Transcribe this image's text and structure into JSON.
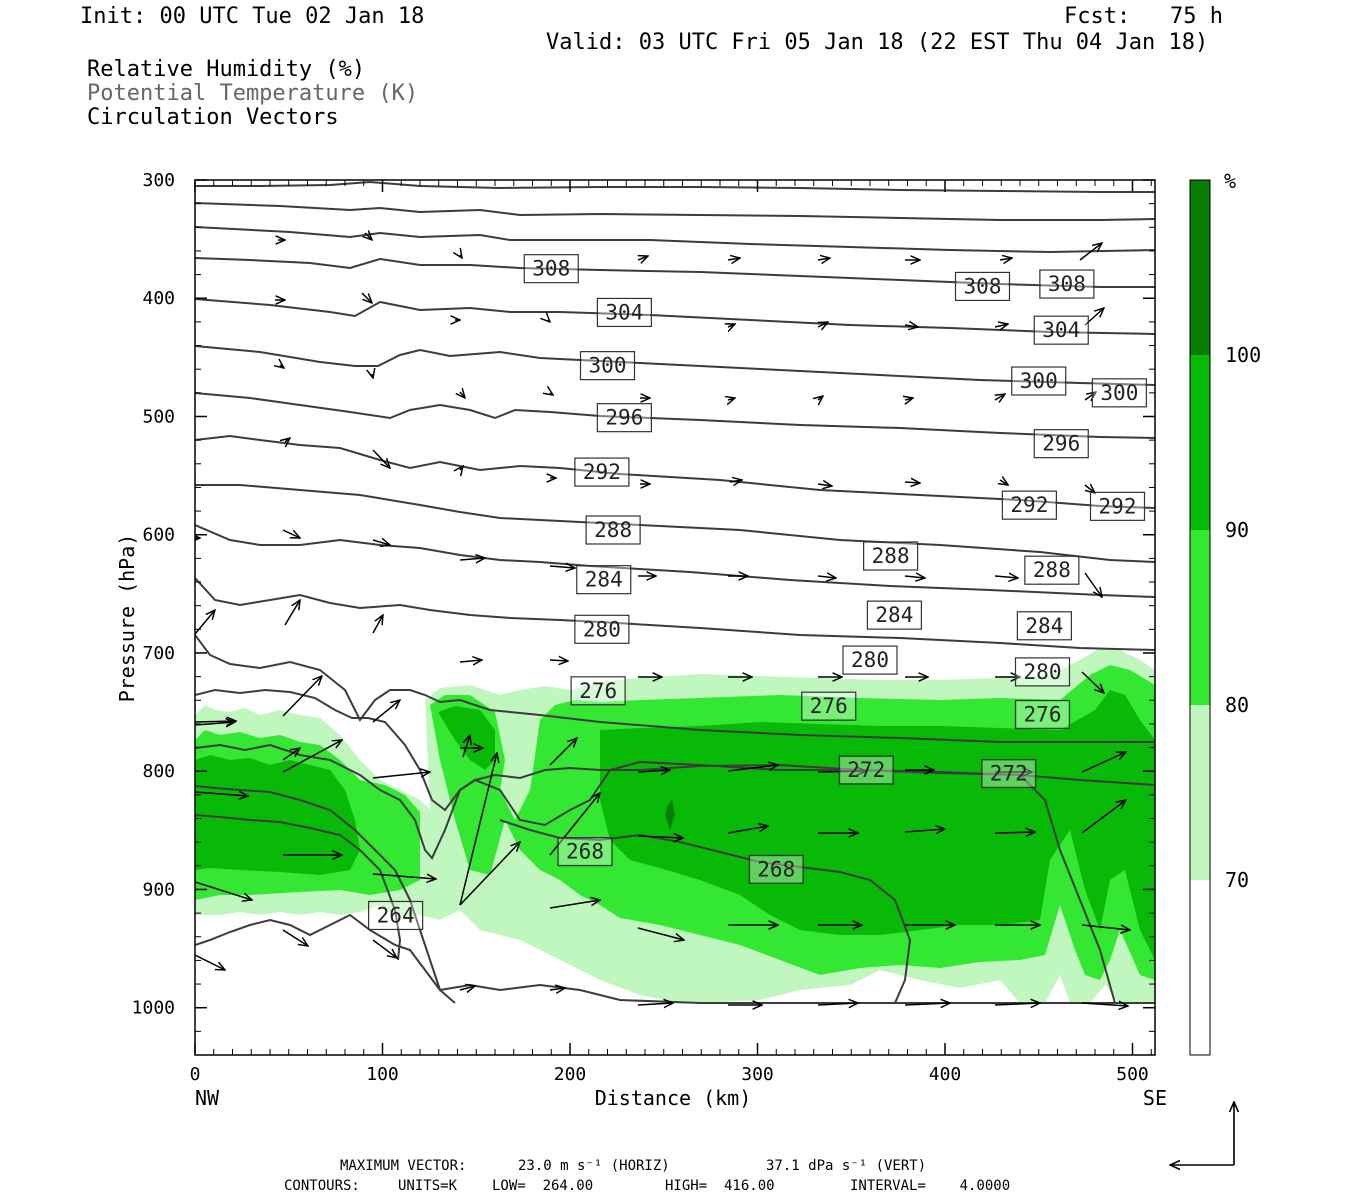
{
  "header": {
    "init": "Init: 00 UTC Tue 02 Jan 18",
    "fcst": "Fcst:   75 h",
    "valid": "Valid: 03 UTC Fri 05 Jan 18 (22 EST Thu 04 Jan 18)"
  },
  "fields": {
    "rh": "Relative Humidity (%)",
    "theta": "Potential Temperature (K)",
    "vectors": "Circulation Vectors"
  },
  "colors": {
    "rh70": "#c0f7bf",
    "rh80": "#33e733",
    "rh90": "#08b908",
    "rh100": "#067e06",
    "contour": "#3c3c3c",
    "vector": "#000000"
  },
  "chart_data": {
    "type": "contour-cross-section",
    "xlabel": "Distance (km)",
    "ylabel": "Pressure (hPa)",
    "xlim": [
      0,
      512
    ],
    "ylim": [
      1040,
      300
    ],
    "x_ticks": [
      "0",
      "100",
      "200",
      "300",
      "400",
      "500"
    ],
    "x_tick_values": [
      0,
      100,
      200,
      300,
      400,
      500
    ],
    "y_ticks": [
      "300",
      "400",
      "500",
      "600",
      "700",
      "800",
      "900",
      "1000"
    ],
    "y_tick_values": [
      300,
      400,
      500,
      600,
      700,
      800,
      900,
      1000
    ],
    "left_end_label": "NW",
    "right_end_label": "SE",
    "colorbar": {
      "unit": "%",
      "labels": [
        "70",
        "80",
        "90",
        "100"
      ],
      "levels": [
        70,
        80,
        90,
        100
      ]
    },
    "theta_contour_labels": [
      {
        "text": "308",
        "x": 190,
        "p": 375
      },
      {
        "text": "308",
        "x": 420,
        "p": 390
      },
      {
        "text": "308",
        "x": 465,
        "p": 388
      },
      {
        "text": "304",
        "x": 229,
        "p": 412
      },
      {
        "text": "304",
        "x": 462,
        "p": 427
      },
      {
        "text": "300",
        "x": 220,
        "p": 457
      },
      {
        "text": "300",
        "x": 450,
        "p": 470
      },
      {
        "text": "300",
        "x": 493,
        "p": 480
      },
      {
        "text": "296",
        "x": 229,
        "p": 501
      },
      {
        "text": "296",
        "x": 462,
        "p": 523
      },
      {
        "text": "292",
        "x": 217,
        "p": 547
      },
      {
        "text": "292",
        "x": 445,
        "p": 575
      },
      {
        "text": "292",
        "x": 492,
        "p": 576
      },
      {
        "text": "288",
        "x": 223,
        "p": 596
      },
      {
        "text": "288",
        "x": 371,
        "p": 618
      },
      {
        "text": "288",
        "x": 457,
        "p": 630
      },
      {
        "text": "284",
        "x": 218,
        "p": 638
      },
      {
        "text": "284",
        "x": 373,
        "p": 668
      },
      {
        "text": "284",
        "x": 453,
        "p": 677
      },
      {
        "text": "280",
        "x": 217,
        "p": 680
      },
      {
        "text": "280",
        "x": 360,
        "p": 706
      },
      {
        "text": "280",
        "x": 452,
        "p": 716
      },
      {
        "text": "276",
        "x": 215,
        "p": 732
      },
      {
        "text": "276",
        "x": 338,
        "p": 745
      },
      {
        "text": "276",
        "x": 452,
        "p": 752
      },
      {
        "text": "272",
        "x": 358,
        "p": 799
      },
      {
        "text": "272",
        "x": 434,
        "p": 802
      },
      {
        "text": "268",
        "x": 208,
        "p": 868
      },
      {
        "text": "268",
        "x": 310,
        "p": 883
      },
      {
        "text": "264",
        "x": 107,
        "p": 922
      }
    ],
    "max_vector_label": "MAXIMUM VECTOR:",
    "max_vector_horiz": "23.0 m s⁻¹ (HORIZ)",
    "max_vector_vert": "37.1 dPa s⁻¹ (VERT)",
    "contours_label": "CONTOURS:",
    "contour_units": "UNITS=K",
    "contour_low": "LOW=  264.00",
    "contour_high": "HIGH=  416.00",
    "contour_interval": "INTERVAL=    4.0000"
  }
}
